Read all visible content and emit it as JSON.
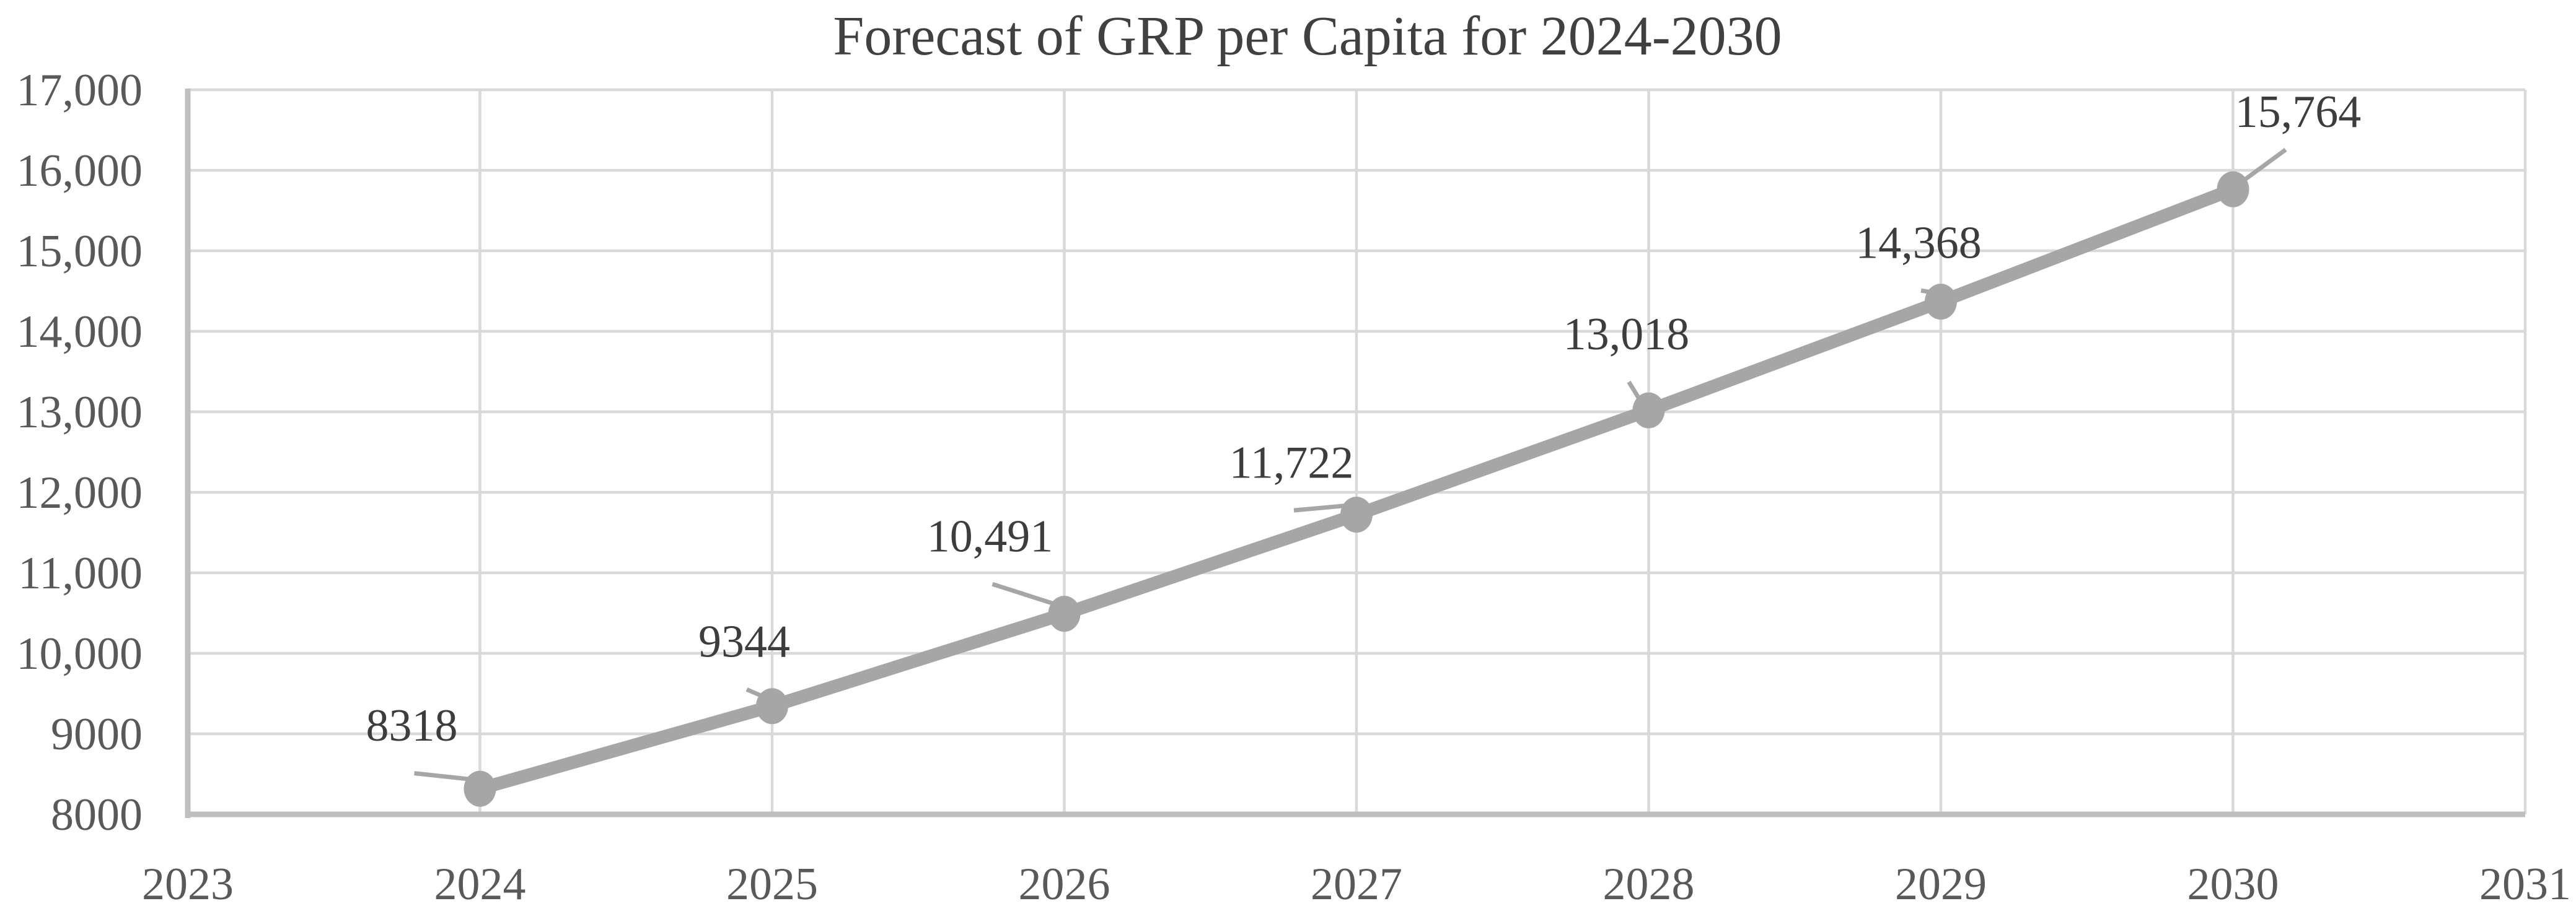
{
  "chart_data": {
    "type": "line",
    "title": "Forecast of GRP per Capita for 2024-2030",
    "x": [
      2024,
      2025,
      2026,
      2027,
      2028,
      2029,
      2030
    ],
    "values": [
      8318,
      9344,
      10491,
      11722,
      13018,
      14368,
      15764
    ],
    "data_labels": [
      "8318",
      "9344",
      "10,491",
      "11,722",
      "13,018",
      "14,368",
      "15,764"
    ],
    "x_ticks": [
      {
        "value": 2023,
        "label": "2023"
      },
      {
        "value": 2024,
        "label": "2024"
      },
      {
        "value": 2025,
        "label": "2025"
      },
      {
        "value": 2026,
        "label": "2026"
      },
      {
        "value": 2027,
        "label": "2027"
      },
      {
        "value": 2028,
        "label": "2028"
      },
      {
        "value": 2029,
        "label": "2029"
      },
      {
        "value": 2030,
        "label": "2030"
      },
      {
        "value": 2031,
        "label": "2031"
      }
    ],
    "y_ticks": [
      {
        "value": 8000,
        "label": "8000"
      },
      {
        "value": 9000,
        "label": "9000"
      },
      {
        "value": 10000,
        "label": "10,000"
      },
      {
        "value": 11000,
        "label": "11,000"
      },
      {
        "value": 12000,
        "label": "12,000"
      },
      {
        "value": 13000,
        "label": "13,000"
      },
      {
        "value": 14000,
        "label": "14,000"
      },
      {
        "value": 15000,
        "label": "15,000"
      },
      {
        "value": 16000,
        "label": "16,000"
      },
      {
        "value": 17000,
        "label": "17,000"
      }
    ],
    "xlim": [
      2023,
      2031
    ],
    "ylim": [
      8000,
      17000
    ],
    "grid": true,
    "legend": "none",
    "marker": "circle",
    "colors": {
      "series": "#a6a6a6",
      "leader_line": "#a6a6a6",
      "gridline": "#d9d9d9",
      "axis_line": "#bfbfbf",
      "title_text": "#404040",
      "tick_text": "#595959",
      "data_label_text": "#3d3d3d",
      "background": "#ffffff"
    }
  }
}
